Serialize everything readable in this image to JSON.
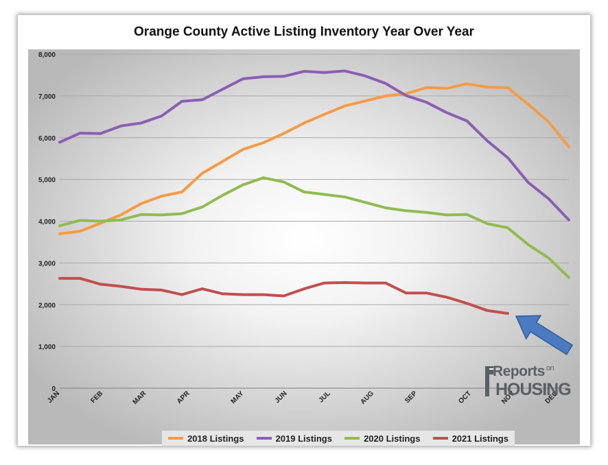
{
  "chart_data": {
    "type": "line",
    "title": "Orange County Active Listing Inventory Year Over Year",
    "xlabel": "",
    "ylabel": "",
    "ylim": [
      0,
      8000
    ],
    "yticks": [
      "0",
      "1,000",
      "2,000",
      "3,000",
      "4,000",
      "5,000",
      "6,000",
      "7,000",
      "8,000"
    ],
    "x_range": [
      0,
      47
    ],
    "month_labels": [
      {
        "label": "JAN",
        "x": 0
      },
      {
        "label": "FEB",
        "x": 4
      },
      {
        "label": "MAR",
        "x": 8
      },
      {
        "label": "APR",
        "x": 12
      },
      {
        "label": "MAY",
        "x": 17
      },
      {
        "label": "JUN",
        "x": 21
      },
      {
        "label": "JUL",
        "x": 25
      },
      {
        "label": "AUG",
        "x": 29
      },
      {
        "label": "SEP",
        "x": 33
      },
      {
        "label": "OCT",
        "x": 38
      },
      {
        "label": "NOV",
        "x": 42
      },
      {
        "label": "DEC",
        "x": 46
      }
    ],
    "series": [
      {
        "name": "2018 Listings",
        "color": "#f59b45",
        "values": [
          3700,
          3760,
          3950,
          4150,
          4420,
          4600,
          4700,
          5150,
          5430,
          5720,
          5880,
          6100,
          6350,
          6560,
          6760,
          6880,
          7000,
          7050,
          7200,
          7180,
          7290,
          7210,
          7200,
          6800,
          6380,
          5780
        ]
      },
      {
        "name": "2019 Listings",
        "color": "#8a5fb3",
        "values": [
          5890,
          6110,
          6100,
          6280,
          6350,
          6520,
          6870,
          6910,
          7160,
          7410,
          7460,
          7470,
          7590,
          7560,
          7600,
          7480,
          7300,
          7010,
          6850,
          6600,
          6400,
          5920,
          5520,
          4930,
          4540,
          4030
        ]
      },
      {
        "name": "2020 Listings",
        "color": "#8fbc4f",
        "values": [
          3890,
          4020,
          4000,
          4030,
          4160,
          4150,
          4180,
          4340,
          4620,
          4870,
          5040,
          4940,
          4700,
          4640,
          4580,
          4450,
          4320,
          4250,
          4210,
          4150,
          4160,
          3940,
          3840,
          3440,
          3120,
          2650
        ]
      },
      {
        "name": "2021 Listings",
        "color": "#c0504d",
        "values": [
          2630,
          2630,
          2490,
          2440,
          2370,
          2350,
          2240,
          2380,
          2260,
          2240,
          2240,
          2210,
          2380,
          2520,
          2530,
          2520,
          2520,
          2280,
          2280,
          2180,
          2030,
          1860,
          1790
        ]
      }
    ],
    "legend_position": "bottom",
    "annotations": [
      "blue arrow pointing to latest 2021 data point"
    ]
  },
  "logo": {
    "line1": "Reports",
    "line1_suffix": "on",
    "line2": "HOUSING"
  },
  "colors": {
    "arrow": "#4a7abf",
    "arrow_stroke": "#2f5d99",
    "grid": "#a8a8a8"
  }
}
